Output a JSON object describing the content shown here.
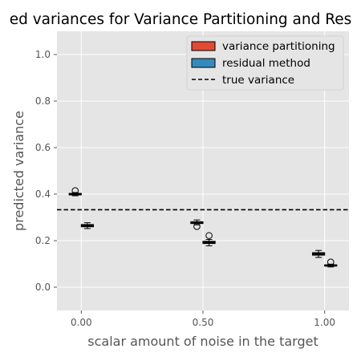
{
  "chart_data": {
    "type": "boxplot",
    "title": "ed variances for Variance Partitioning and Res",
    "xlabel": "scalar amount of noise in the target",
    "ylabel": "predicted variance",
    "xlim": [
      -0.1,
      1.1
    ],
    "ylim": [
      -0.1,
      1.1
    ],
    "x_ticks": [
      0.0,
      0.5,
      1.0
    ],
    "x_tick_labels": [
      "0.00",
      "0.50",
      "1.00"
    ],
    "y_ticks": [
      0.0,
      0.2,
      0.4,
      0.6,
      0.8,
      1.0
    ],
    "y_tick_labels": [
      "0.0",
      "0.2",
      "0.4",
      "0.6",
      "0.8",
      "1.0"
    ],
    "grid": true,
    "legend_position": "top-right",
    "true_variance": 0.333,
    "true_variance_label": "true variance",
    "series": [
      {
        "name": "variance partitioning",
        "color": "#E24A33",
        "boxes": [
          {
            "x": -0.025,
            "whislo": 0.393,
            "q1": 0.397,
            "med": 0.4,
            "q3": 0.403,
            "whishi": 0.407,
            "fliers": [
              0.415
            ]
          },
          {
            "x": 0.475,
            "whislo": 0.268,
            "q1": 0.274,
            "med": 0.278,
            "q3": 0.281,
            "whishi": 0.289,
            "fliers": [
              0.261
            ]
          },
          {
            "x": 0.975,
            "whislo": 0.128,
            "q1": 0.138,
            "med": 0.143,
            "q3": 0.148,
            "whishi": 0.158,
            "fliers": []
          }
        ]
      },
      {
        "name": "residual method",
        "color": "#348ABD",
        "boxes": [
          {
            "x": 0.025,
            "whislo": 0.252,
            "q1": 0.26,
            "med": 0.264,
            "q3": 0.269,
            "whishi": 0.277,
            "fliers": []
          },
          {
            "x": 0.525,
            "whislo": 0.178,
            "q1": 0.188,
            "med": 0.193,
            "q3": 0.197,
            "whishi": 0.205,
            "fliers": [
              0.222
            ]
          },
          {
            "x": 1.025,
            "whislo": 0.087,
            "q1": 0.091,
            "med": 0.093,
            "q3": 0.096,
            "whishi": 0.099,
            "fliers": [
              0.108
            ]
          }
        ]
      }
    ]
  }
}
